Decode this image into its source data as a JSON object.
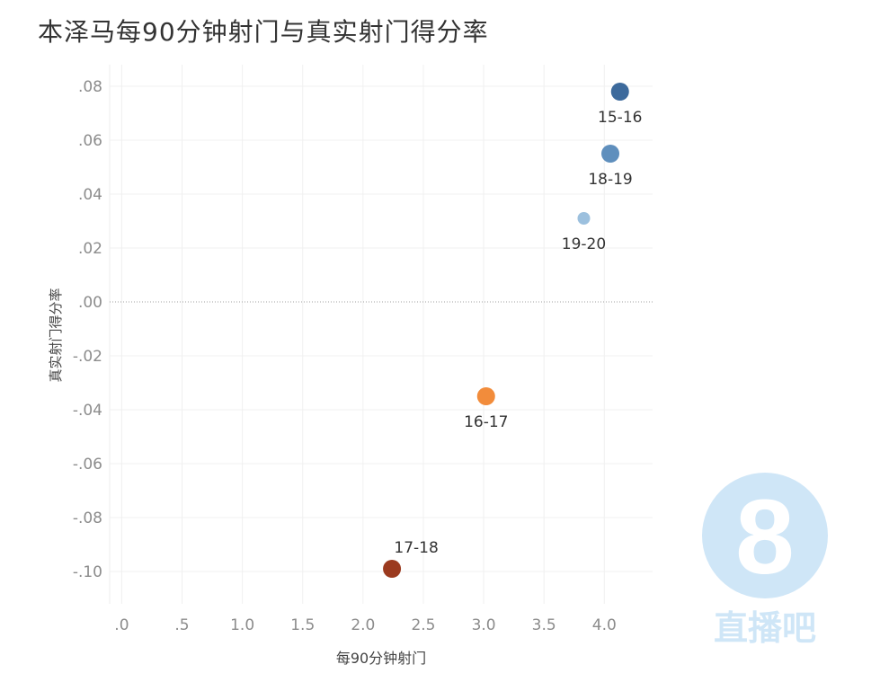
{
  "title": "本泽马每90分钟射门与真实射门得分率",
  "chart_data": {
    "type": "scatter",
    "title": "本泽马每90分钟射门与真实射门得分率",
    "xlabel": "每90分钟射门",
    "ylabel": "真实射门得分率",
    "xlim": [
      -0.1,
      4.4
    ],
    "ylim": [
      -0.112,
      0.088
    ],
    "x_ticks": [
      {
        "value": 0.0,
        "label": ".0"
      },
      {
        "value": 0.5,
        "label": ".5"
      },
      {
        "value": 1.0,
        "label": "1.0"
      },
      {
        "value": 1.5,
        "label": "1.5"
      },
      {
        "value": 2.0,
        "label": "2.0"
      },
      {
        "value": 2.5,
        "label": "2.5"
      },
      {
        "value": 3.0,
        "label": "3.0"
      },
      {
        "value": 3.5,
        "label": "3.5"
      },
      {
        "value": 4.0,
        "label": "4.0"
      }
    ],
    "y_ticks": [
      {
        "value": 0.08,
        "label": ".08"
      },
      {
        "value": 0.06,
        "label": ".06"
      },
      {
        "value": 0.04,
        "label": ".04"
      },
      {
        "value": 0.02,
        "label": ".02"
      },
      {
        "value": 0.0,
        "label": ".00"
      },
      {
        "value": -0.02,
        "label": "-.02"
      },
      {
        "value": -0.04,
        "label": "-.04"
      },
      {
        "value": -0.06,
        "label": "-.06"
      },
      {
        "value": -0.08,
        "label": "-.08"
      },
      {
        "value": -0.1,
        "label": "-.10"
      }
    ],
    "grid": true,
    "points": [
      {
        "label": "15-16",
        "x": 4.13,
        "y": 0.078,
        "color": "#3d6a9c",
        "label_pos": "below"
      },
      {
        "label": "18-19",
        "x": 4.05,
        "y": 0.055,
        "color": "#5f8fbd",
        "label_pos": "below"
      },
      {
        "label": "19-20",
        "x": 3.83,
        "y": 0.031,
        "color": "#9cc0de",
        "label_pos": "below"
      },
      {
        "label": "16-17",
        "x": 3.02,
        "y": -0.035,
        "color": "#f28c3b",
        "label_pos": "below"
      },
      {
        "label": "17-18",
        "x": 2.24,
        "y": -0.099,
        "color": "#9b3a1f",
        "label_pos": "above"
      }
    ]
  },
  "watermark": {
    "digit": "8",
    "text": "直播吧",
    "color": "#cfe6f7"
  }
}
